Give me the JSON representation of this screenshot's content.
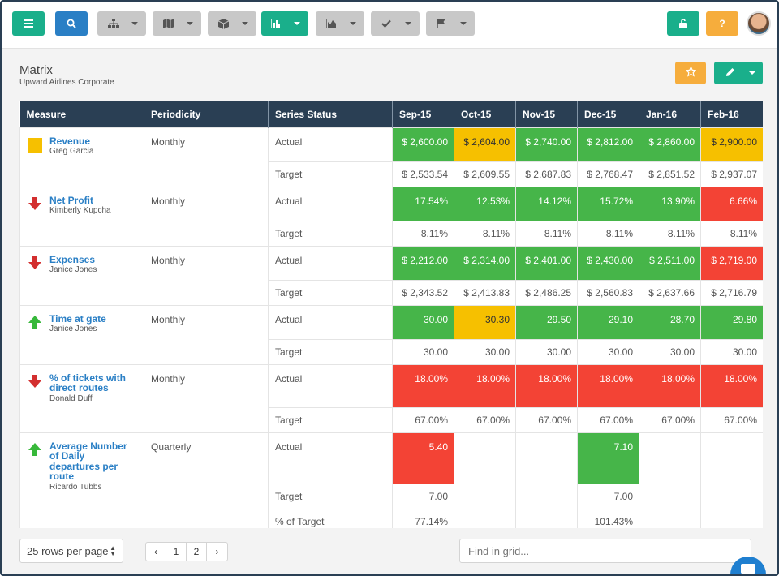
{
  "toolbar": {
    "buttons": [
      {
        "name": "menu-icon"
      },
      {
        "name": "search-icon"
      },
      {
        "name": "hierarchy-icon"
      },
      {
        "name": "map-icon"
      },
      {
        "name": "cube-icon"
      },
      {
        "name": "bar-chart-icon"
      },
      {
        "name": "area-chart-icon"
      },
      {
        "name": "check-icon"
      },
      {
        "name": "flag-icon"
      },
      {
        "name": "unlock-icon"
      },
      {
        "name": "help-icon",
        "label": "?"
      }
    ]
  },
  "page": {
    "title": "Matrix",
    "subtitle": "Upward Airlines Corporate"
  },
  "grid": {
    "headers": [
      "Measure",
      "Periodicity",
      "Series Status",
      "Sep-15",
      "Oct-15",
      "Nov-15",
      "Dec-15",
      "Jan-16",
      "Feb-16"
    ],
    "measures": [
      {
        "name": "Revenue",
        "owner": "Greg Garcia",
        "indicator": "yellow-square",
        "periodicity": "Monthly",
        "rows": [
          {
            "status": "Actual",
            "values": [
              "$ 2,600.00",
              "$ 2,604.00",
              "$ 2,740.00",
              "$ 2,812.00",
              "$ 2,860.00",
              "$ 2,900.00"
            ],
            "colors": [
              "green",
              "yellow",
              "green",
              "green",
              "green",
              "yellow"
            ]
          },
          {
            "status": "Target",
            "values": [
              "$ 2,533.54",
              "$ 2,609.55",
              "$ 2,687.83",
              "$ 2,768.47",
              "$ 2,851.52",
              "$ 2,937.07"
            ]
          }
        ]
      },
      {
        "name": "Net Profit",
        "owner": "Kimberly Kupcha",
        "indicator": "down-arrow-red",
        "periodicity": "Monthly",
        "rows": [
          {
            "status": "Actual",
            "values": [
              "17.54%",
              "12.53%",
              "14.12%",
              "15.72%",
              "13.90%",
              "6.66%"
            ],
            "colors": [
              "green",
              "green",
              "green",
              "green",
              "green",
              "red"
            ]
          },
          {
            "status": "Target",
            "values": [
              "8.11%",
              "8.11%",
              "8.11%",
              "8.11%",
              "8.11%",
              "8.11%"
            ]
          }
        ]
      },
      {
        "name": "Expenses",
        "owner": "Janice Jones",
        "indicator": "down-arrow-red",
        "periodicity": "Monthly",
        "rows": [
          {
            "status": "Actual",
            "values": [
              "$ 2,212.00",
              "$ 2,314.00",
              "$ 2,401.00",
              "$ 2,430.00",
              "$ 2,511.00",
              "$ 2,719.00"
            ],
            "colors": [
              "green",
              "green",
              "green",
              "green",
              "green",
              "red"
            ]
          },
          {
            "status": "Target",
            "values": [
              "$ 2,343.52",
              "$ 2,413.83",
              "$ 2,486.25",
              "$ 2,560.83",
              "$ 2,637.66",
              "$ 2,716.79"
            ]
          }
        ]
      },
      {
        "name": "Time at gate",
        "owner": "Janice Jones",
        "indicator": "up-arrow-green",
        "periodicity": "Monthly",
        "rows": [
          {
            "status": "Actual",
            "values": [
              "30.00",
              "30.30",
              "29.50",
              "29.10",
              "28.70",
              "29.80"
            ],
            "colors": [
              "green",
              "yellow",
              "green",
              "green",
              "green",
              "green"
            ]
          },
          {
            "status": "Target",
            "values": [
              "30.00",
              "30.00",
              "30.00",
              "30.00",
              "30.00",
              "30.00"
            ]
          }
        ]
      },
      {
        "name": "% of tickets with direct routes",
        "owner": "Donald Duff",
        "indicator": "down-arrow-red",
        "periodicity": "Monthly",
        "rows": [
          {
            "status": "Actual",
            "values": [
              "18.00%",
              "18.00%",
              "18.00%",
              "18.00%",
              "18.00%",
              "18.00%"
            ],
            "colors": [
              "red",
              "red",
              "red",
              "red",
              "red",
              "red"
            ]
          },
          {
            "status": "Target",
            "values": [
              "67.00%",
              "67.00%",
              "67.00%",
              "67.00%",
              "67.00%",
              "67.00%"
            ]
          }
        ]
      },
      {
        "name": "Average Number of Daily departures per route",
        "owner": "Ricardo Tubbs",
        "indicator": "up-arrow-green",
        "periodicity": "Quarterly",
        "rows": [
          {
            "status": "Actual",
            "values": [
              "5.40",
              "",
              "",
              "7.10",
              "",
              ""
            ],
            "colors": [
              "red",
              "",
              "",
              "green",
              "",
              ""
            ]
          },
          {
            "status": "Target",
            "values": [
              "7.00",
              "",
              "",
              "7.00",
              "",
              ""
            ]
          },
          {
            "status": "% of Target",
            "values": [
              "77.14%",
              "",
              "",
              "101.43%",
              "",
              ""
            ]
          }
        ]
      }
    ]
  },
  "footer": {
    "rows_per_page": "25 rows per page",
    "pager": [
      "‹",
      "1",
      "2",
      "›"
    ],
    "search_placeholder": "Find in grid..."
  },
  "colors": {
    "header_bg": "#2a3f54",
    "green": "#46b549",
    "yellow": "#f6c000",
    "red": "#f34335",
    "teal": "#1aaf8b",
    "blue": "#2a7fc5",
    "orange": "#f6ad3c",
    "link": "#2a7fc5"
  }
}
